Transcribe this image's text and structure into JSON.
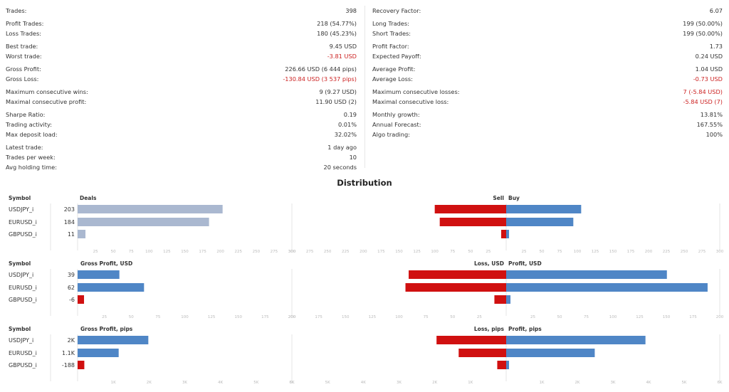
{
  "stats": {
    "left": [
      [
        {
          "label": "Trades:",
          "value": "398"
        }
      ],
      [
        {
          "label": "Profit Trades:",
          "value": "218 (54.77%)"
        },
        {
          "label": "Loss Trades:",
          "value": "180 (45.23%)"
        }
      ],
      [
        {
          "label": "Best trade:",
          "value": "9.45 USD"
        },
        {
          "label": "Worst trade:",
          "value": "-3.81 USD",
          "neg": true
        }
      ],
      [
        {
          "label": "Gross Profit:",
          "value": "226.66 USD (6 444 pips)"
        },
        {
          "label": "Gross Loss:",
          "value": "-130.84 USD (3 537 pips)",
          "neg": true
        }
      ],
      [
        {
          "label": "Maximum consecutive wins:",
          "value": "9 (9.27 USD)"
        },
        {
          "label": "Maximal consecutive profit:",
          "value": "11.90 USD (2)"
        }
      ],
      [
        {
          "label": "Sharpe Ratio:",
          "value": "0.19"
        },
        {
          "label": "Trading activity:",
          "value": "0.01%"
        },
        {
          "label": "Max deposit load:",
          "value": "32.02%"
        }
      ],
      [
        {
          "label": "Latest trade:",
          "value": "1 day ago"
        },
        {
          "label": "Trades per week:",
          "value": "10"
        },
        {
          "label": "Avg holding time:",
          "value": "20 seconds"
        }
      ]
    ],
    "right": [
      [
        {
          "label": "Recovery Factor:",
          "value": "6.07"
        }
      ],
      [
        {
          "label": "Long Trades:",
          "value": "199 (50.00%)"
        },
        {
          "label": "Short Trades:",
          "value": "199 (50.00%)"
        }
      ],
      [
        {
          "label": "Profit Factor:",
          "value": "1.73"
        },
        {
          "label": "Expected Payoff:",
          "value": "0.24 USD"
        }
      ],
      [
        {
          "label": "Average Profit:",
          "value": "1.04 USD"
        },
        {
          "label": "Average Loss:",
          "value": "-0.73 USD",
          "neg": true
        }
      ],
      [
        {
          "label": "Maximum consecutive losses:",
          "value": "7 (-5.84 USD)",
          "neg": true
        },
        {
          "label": "Maximal consecutive loss:",
          "value": "-5.84 USD (7)",
          "neg": true
        }
      ],
      [
        {
          "label": "Monthly growth:",
          "value": "13.81%"
        },
        {
          "label": "Annual Forecast:",
          "value": "167.55%"
        },
        {
          "label": "Algo trading:",
          "value": "100%"
        }
      ]
    ]
  },
  "distribution_title": "Distribution",
  "colors": {
    "deals": "#aab8d0",
    "profit": "#4f86c6",
    "loss": "#d01010",
    "grid": "#e4e4e4",
    "tick": "#bbbbbb"
  },
  "chart_data": [
    {
      "type": "bar",
      "symbol_header": "Symbol",
      "left_header": "Deals",
      "right_header_neg": "Sell",
      "right_header_pos": "Buy",
      "rows": [
        {
          "symbol": "USDJPY_i",
          "label": "203",
          "value": 203,
          "neg": 0,
          "pos": 0
        },
        {
          "symbol": "EURUSD_i",
          "label": "184",
          "value": 184,
          "neg": 0,
          "pos": 0
        },
        {
          "symbol": "GBPUSD_i",
          "label": "11",
          "value": 11,
          "neg": 0,
          "pos": 0
        }
      ],
      "sell_buy": [
        {
          "sell": 100,
          "buy": 105
        },
        {
          "sell": 93,
          "buy": 94
        },
        {
          "sell": 7,
          "buy": 4
        }
      ],
      "left_ticks": [
        "25",
        "50",
        "75",
        "100",
        "125",
        "150",
        "175",
        "200",
        "225",
        "250",
        "275",
        "300"
      ],
      "left_max": 300,
      "right_ticks_neg": [
        "300",
        "275",
        "250",
        "225",
        "200",
        "175",
        "150",
        "125",
        "100",
        "75",
        "50",
        "25"
      ],
      "right_ticks_pos": [
        "25",
        "50",
        "75",
        "100",
        "125",
        "150",
        "175",
        "200",
        "225",
        "250",
        "275",
        "300"
      ],
      "right_max": 300
    },
    {
      "type": "bar",
      "symbol_header": "Symbol",
      "left_header": "Gross Profit, USD",
      "right_header_neg": "Loss, USD",
      "right_header_pos": "Profit, USD",
      "rows": [
        {
          "symbol": "USDJPY_i",
          "label": "39",
          "value": 39
        },
        {
          "symbol": "EURUSD_i",
          "label": "62",
          "value": 62
        },
        {
          "symbol": "GBPUSD_i",
          "label": "-6",
          "value": -6
        }
      ],
      "loss_profit": [
        {
          "loss": -91,
          "profit": 150
        },
        {
          "loss": -94,
          "profit": 188
        },
        {
          "loss": -11,
          "profit": 4
        }
      ],
      "left_ticks": [
        "25",
        "50",
        "75",
        "100",
        "125",
        "150",
        "175",
        "200"
      ],
      "left_max": 200,
      "right_ticks_neg": [
        "200",
        "175",
        "150",
        "125",
        "100",
        "75",
        "50",
        "25"
      ],
      "right_ticks_pos": [
        "25",
        "50",
        "75",
        "100",
        "125",
        "150",
        "175",
        "200"
      ],
      "right_max": 200
    },
    {
      "type": "bar",
      "symbol_header": "Symbol",
      "left_header": "Gross Profit, pips",
      "right_header_neg": "Loss, pips",
      "right_header_pos": "Profit, pips",
      "rows": [
        {
          "symbol": "USDJPY_i",
          "label": "2K",
          "value": 1980
        },
        {
          "symbol": "EURUSD_i",
          "label": "1.1K",
          "value": 1150
        },
        {
          "symbol": "GBPUSD_i",
          "label": "-188",
          "value": -188
        }
      ],
      "loss_profit": [
        {
          "loss": -1950,
          "profit": 3900
        },
        {
          "loss": -1330,
          "profit": 2480
        },
        {
          "loss": -250,
          "profit": 80
        }
      ],
      "left_ticks": [
        "1K",
        "2K",
        "3K",
        "4K",
        "5K",
        "6K"
      ],
      "left_max": 6000,
      "right_ticks_neg": [
        "6K",
        "5K",
        "4K",
        "3K",
        "2K",
        "1K"
      ],
      "right_ticks_pos": [
        "1K",
        "2K",
        "3K",
        "4K",
        "5K",
        "6K"
      ],
      "right_max": 6000
    }
  ]
}
